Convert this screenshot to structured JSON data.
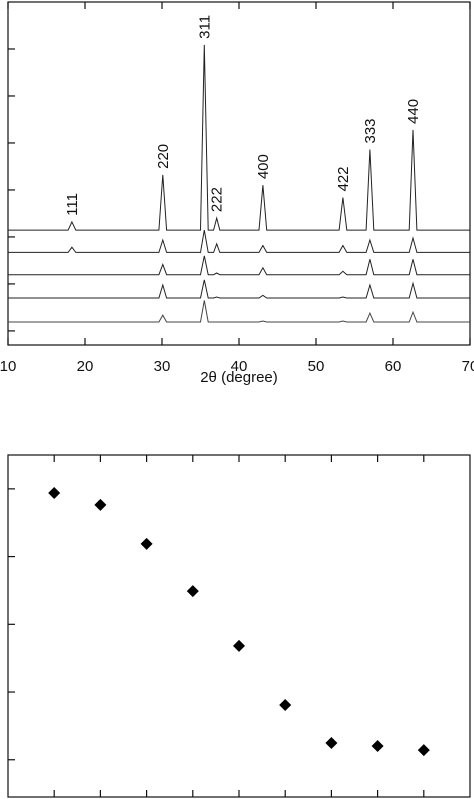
{
  "chart_data": [
    {
      "type": "line",
      "x_label": "2θ (degree)",
      "xlim": [
        10,
        70
      ],
      "xticks": [
        10,
        20,
        30,
        40,
        50,
        60,
        70
      ],
      "ylim": [
        0,
        100
      ],
      "x": [
        10,
        17.8,
        18.3,
        18.8,
        29.6,
        30.1,
        30.6,
        35.0,
        35.5,
        36.0,
        36.7,
        37.1,
        37.5,
        42.6,
        43.1,
        43.6,
        53.0,
        53.5,
        54.0,
        56.5,
        57.0,
        57.5,
        62.1,
        62.6,
        63.1,
        70
      ],
      "series": [
        {
          "color": "#222222",
          "values": [
            33.5,
            33.5,
            35.9,
            33.5,
            33.5,
            49.6,
            33.5,
            33.5,
            87.5,
            33.5,
            33.5,
            37,
            33.5,
            33.5,
            46.6,
            33.5,
            33.5,
            43,
            33.5,
            33.5,
            57,
            33.5,
            33.5,
            62.7,
            33.5,
            33.5
          ]
        },
        {
          "color": "#222222",
          "values": [
            27,
            27,
            28.5,
            27,
            27,
            30.6,
            27,
            27,
            33.5,
            27,
            27,
            29.5,
            27,
            27,
            29,
            27,
            27,
            29,
            27,
            27,
            30.6,
            27,
            27,
            31.2,
            27,
            27
          ]
        },
        {
          "color": "#222222",
          "values": [
            20.5,
            20.5,
            20.5,
            20.5,
            20.5,
            23.5,
            20.5,
            20.5,
            26,
            20.5,
            20.5,
            21,
            20.5,
            20.5,
            22.5,
            20.5,
            20.5,
            21.5,
            20.5,
            20.5,
            25,
            20.5,
            20.5,
            25,
            20.5,
            20.5
          ]
        },
        {
          "color": "#222222",
          "values": [
            13.7,
            13.7,
            13.7,
            13.7,
            13.7,
            17.5,
            13.7,
            13.7,
            19,
            13.7,
            13.7,
            14,
            13.7,
            13.7,
            14.5,
            13.7,
            13.7,
            14,
            13.7,
            13.7,
            17.5,
            13.7,
            13.7,
            18,
            13.7,
            13.7
          ]
        },
        {
          "color": "#444444",
          "values": [
            6.7,
            6.7,
            6.7,
            6.7,
            6.7,
            8.7,
            6.7,
            6.7,
            13,
            6.7,
            6.7,
            6.7,
            6.7,
            6.7,
            7,
            6.7,
            6.7,
            7,
            6.7,
            6.7,
            9.3,
            6.7,
            6.7,
            9.6,
            6.7,
            6.7
          ]
        }
      ],
      "annotations": [
        {
          "text": "111",
          "x": 18.3,
          "y": 35.9
        },
        {
          "text": "220",
          "x": 30.1,
          "y": 49.6
        },
        {
          "text": "311",
          "x": 35.5,
          "y": 87.5
        },
        {
          "text": "222",
          "x": 37.1,
          "y": 37
        },
        {
          "text": "400",
          "x": 43.1,
          "y": 46.6
        },
        {
          "text": "422",
          "x": 53.5,
          "y": 43
        },
        {
          "text": "333",
          "x": 57.0,
          "y": 57
        },
        {
          "text": "440",
          "x": 62.6,
          "y": 62.7
        }
      ]
    },
    {
      "type": "scatter",
      "xlim": [
        0,
        10
      ],
      "ylim": [
        0,
        100
      ],
      "x": [
        1,
        2,
        3,
        4,
        5,
        6,
        7,
        8,
        9
      ],
      "values": [
        88.9,
        85.4,
        74,
        60.2,
        44.2,
        26.9,
        15.8,
        14.9,
        13.7
      ],
      "color": "#000000"
    }
  ]
}
